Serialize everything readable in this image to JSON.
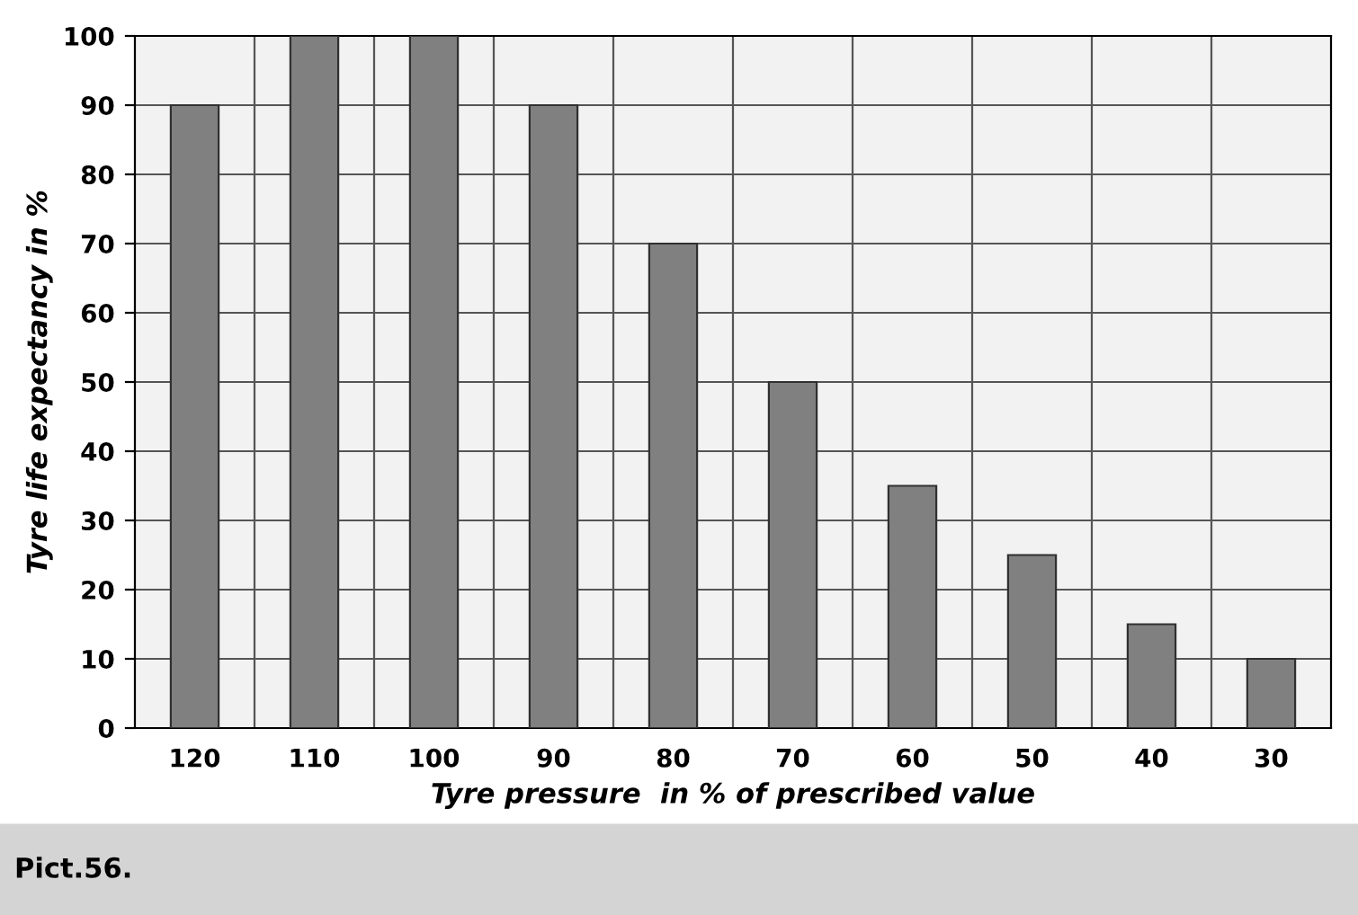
{
  "chart_data": {
    "type": "bar",
    "xlabel": "Tyre pressure  in % of prescribed value",
    "ylabel": "Tyre life expectancy in %",
    "categories": [
      "120",
      "110",
      "100",
      "90",
      "80",
      "70",
      "60",
      "50",
      "40",
      "30"
    ],
    "values": [
      90,
      100,
      100,
      90,
      70,
      50,
      35,
      25,
      15,
      10
    ],
    "color": "#808080",
    "ylim": [
      0,
      100
    ],
    "yticks": [
      0,
      10,
      20,
      30,
      40,
      50,
      60,
      70,
      80,
      90,
      100
    ],
    "grid": true,
    "annotations": [
      "Pict.56."
    ]
  }
}
